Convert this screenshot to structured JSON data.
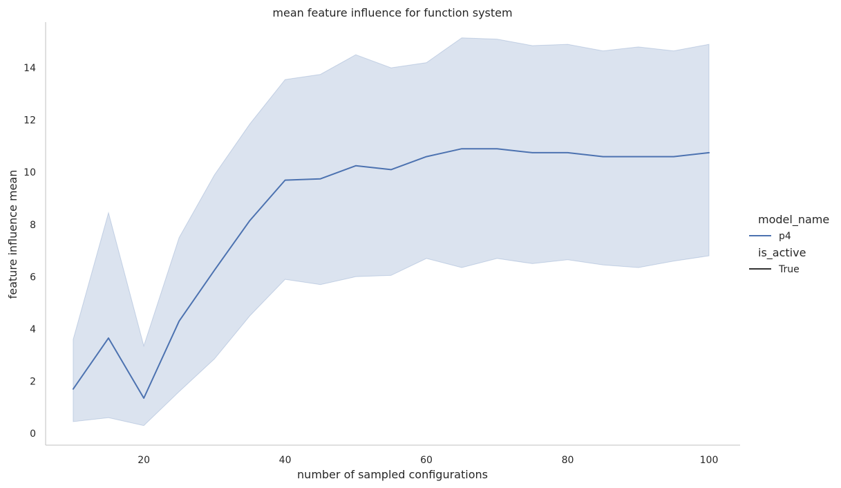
{
  "chart_data": {
    "type": "line",
    "title": "mean feature influence for function system",
    "xlabel": "number of sampled configurations",
    "ylabel": "feature influence mean",
    "xlim": [
      6.1,
      104.4
    ],
    "ylim": [
      -0.45,
      15.75
    ],
    "xticks": [
      20,
      40,
      60,
      80,
      100
    ],
    "yticks": [
      0,
      2,
      4,
      6,
      8,
      10,
      12,
      14
    ],
    "grid": false,
    "legend_position": "right",
    "legend": {
      "hue_title": "model_name",
      "hue_entries": [
        "p4"
      ],
      "style_title": "is_active",
      "style_entries": [
        "True"
      ]
    },
    "series": [
      {
        "name": "p4",
        "color": "#4c72b0",
        "band_color": "#4c72b0",
        "x": [
          10,
          15,
          20,
          25,
          30,
          35,
          40,
          45,
          50,
          55,
          60,
          65,
          70,
          75,
          80,
          85,
          90,
          95,
          100
        ],
        "y": [
          1.7,
          3.65,
          1.35,
          4.3,
          6.25,
          8.15,
          9.7,
          9.75,
          10.25,
          10.1,
          10.6,
          10.9,
          10.9,
          10.75,
          10.75,
          10.6,
          10.6,
          10.6,
          10.75
        ],
        "ci_low": [
          0.45,
          0.6,
          0.3,
          1.6,
          2.85,
          4.5,
          5.9,
          5.7,
          6.0,
          6.05,
          6.7,
          6.35,
          6.7,
          6.5,
          6.65,
          6.45,
          6.35,
          6.6,
          6.8
        ],
        "ci_high": [
          3.6,
          8.45,
          3.35,
          7.5,
          9.9,
          11.85,
          13.55,
          13.75,
          14.5,
          14.0,
          14.2,
          15.15,
          15.1,
          14.85,
          14.9,
          14.65,
          14.8,
          14.65,
          14.9
        ]
      }
    ]
  }
}
